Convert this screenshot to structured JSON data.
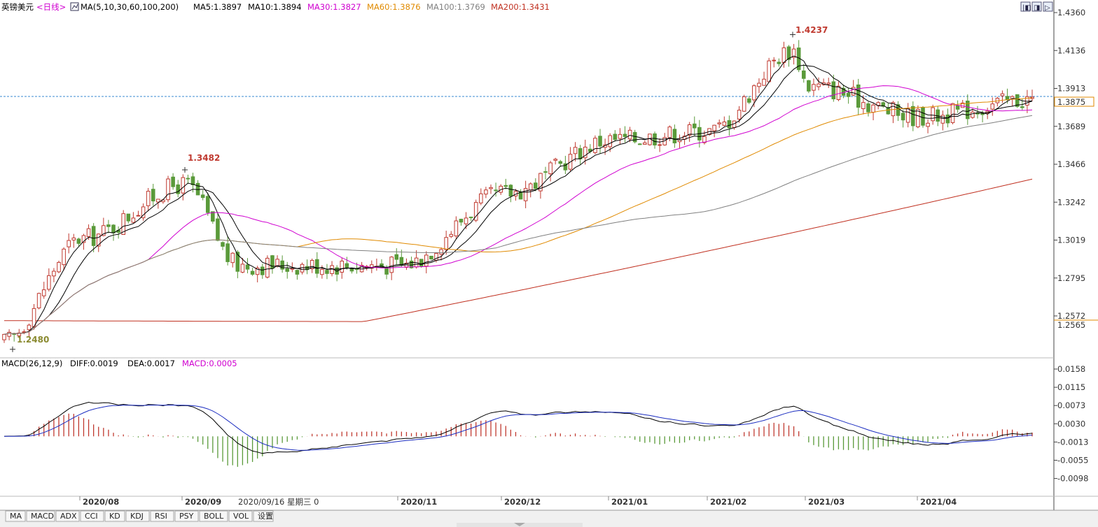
{
  "header": {
    "instrument": "英镑美元",
    "period": "<日线>",
    "indicator_name": "MA(5,10,30,60,100,200)",
    "ma_values": [
      {
        "label": "MA5:1.3897",
        "color": "#000000"
      },
      {
        "label": "MA10:1.3894",
        "color": "#000000"
      },
      {
        "label": "MA30:1.3827",
        "color": "#d000d0"
      },
      {
        "label": "MA60:1.3876",
        "color": "#e08a00"
      },
      {
        "label": "MA100:1.3769",
        "color": "#808080"
      },
      {
        "label": "MA200:1.3431",
        "color": "#c03020"
      }
    ]
  },
  "macd_header": {
    "name": "MACD(26,12,9)",
    "diff": "DIFF:0.0019",
    "dea": "DEA:0.0017",
    "macd": "MACD:0.0005",
    "macd_color": "#d000d0"
  },
  "price_axis_labels": [
    "1.4360",
    "1.4136",
    "1.3913",
    "1.3689",
    "1.3466",
    "1.3242",
    "1.3019",
    "1.2795",
    "1.2572"
  ],
  "current_price_label": "1.3875",
  "low_axis_label": "1.2565",
  "macd_axis_labels": [
    "0.0158",
    "0.0115",
    "0.0073",
    "0.0030",
    "-0.0013",
    "-0.0055",
    "-0.0098"
  ],
  "date_labels": [
    "2020/08",
    "2020/09",
    "2020/11",
    "2020/12",
    "2021/01",
    "2021/02",
    "2021/03",
    "2021/04"
  ],
  "cursor_label": "2020/09/16 星期三 0",
  "peak_labels": {
    "high1": "1.3482",
    "high2": "1.4237",
    "low": "1.2480"
  },
  "bottom_tabs": [
    "MA",
    "MACD",
    "ADX",
    "CCI",
    "KD",
    "KDJ",
    "RSI",
    "PSY",
    "BOLL",
    "VOL",
    "设置"
  ],
  "colors": {
    "up": "#c03a30",
    "down": "#5a9a3a",
    "ma_black": "#000000",
    "ma30": "#d000d0",
    "ma60": "#e08a00",
    "ma100": "#808080",
    "ma200": "#c03020",
    "dea": "#1a2cc0",
    "price_line": "#3a8ad0"
  },
  "chart_data": {
    "type": "candlestick",
    "title": "英镑美元",
    "interval": "daily",
    "ylim": [
      1.244,
      1.436
    ],
    "key_values": {
      "high_2020_09": 1.3482,
      "high_2021_02": 1.4237,
      "low_2020_07": 1.248,
      "last_close": 1.3875
    },
    "dates": [
      "2020-07-13",
      "2020-08-03",
      "2020-09-01",
      "2020-09-16",
      "2020-11-02",
      "2020-12-01",
      "2021-01-04",
      "2021-02-01",
      "2021-02-24",
      "2021-03-01",
      "2021-04-01",
      "2021-04-30"
    ],
    "close_points": [
      1.252,
      1.31,
      1.34,
      1.295,
      1.295,
      1.335,
      1.365,
      1.37,
      1.415,
      1.395,
      1.378,
      1.3875
    ],
    "series": [
      {
        "name": "MA30",
        "end": 1.3827
      },
      {
        "name": "MA60",
        "end": 1.3876
      },
      {
        "name": "MA100",
        "end": 1.3769
      },
      {
        "name": "MA200",
        "end": 1.3431
      }
    ],
    "macd": {
      "diff": 0.0019,
      "dea": 0.0017,
      "macd": 0.0005,
      "ylim": [
        -0.012,
        0.0165
      ]
    }
  }
}
